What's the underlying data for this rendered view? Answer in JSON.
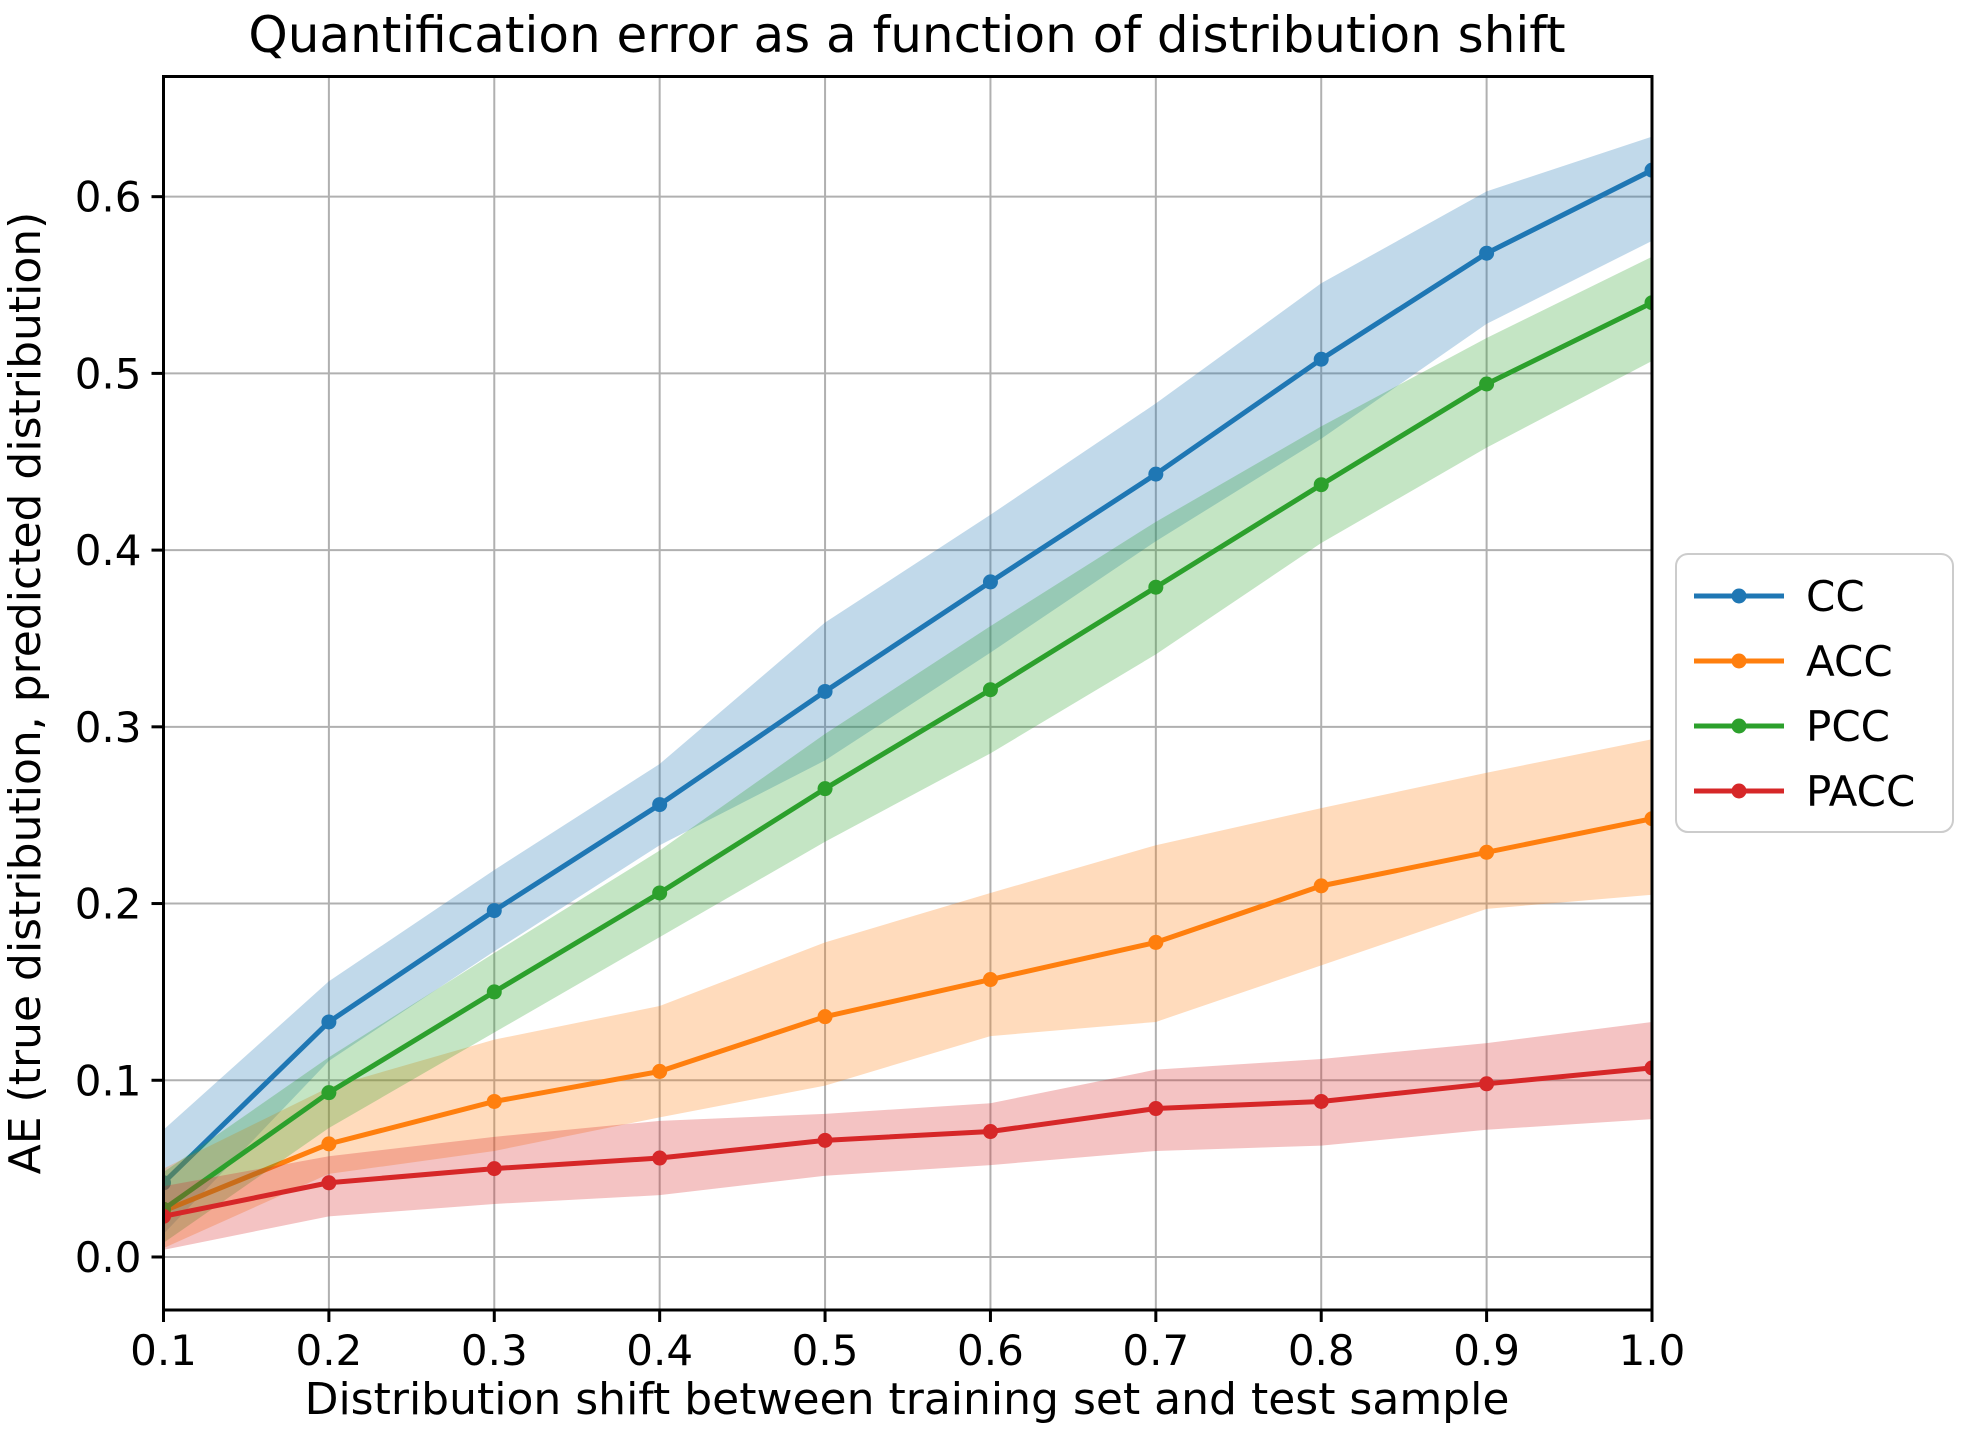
{
  "chart_data": {
    "type": "line",
    "title": "Quantification error as a function of distribution shift",
    "xlabel": "Distribution shift between training set and test sample",
    "ylabel": "AE (true distribution, predicted distribution)",
    "grid": true,
    "legend_position": "right of plot, vertically centered",
    "xlim": [
      0.1,
      1.0
    ],
    "ylim": [
      -0.03,
      0.668
    ],
    "x": [
      0.1,
      0.2,
      0.3,
      0.4,
      0.5,
      0.6,
      0.7,
      0.8,
      0.9,
      1.0
    ],
    "x_tick_labels": [
      "0.1",
      "0.2",
      "0.3",
      "0.4",
      "0.5",
      "0.6",
      "0.7",
      "0.8",
      "0.9",
      "1.0"
    ],
    "y_ticks": [
      0.0,
      0.1,
      0.2,
      0.3,
      0.4,
      0.5,
      0.6
    ],
    "y_tick_labels": [
      "0.0",
      "0.1",
      "0.2",
      "0.3",
      "0.4",
      "0.5",
      "0.6"
    ],
    "series": [
      {
        "name": "CC",
        "color": "#1f77b4",
        "values": [
          0.042,
          0.133,
          0.196,
          0.256,
          0.32,
          0.382,
          0.443,
          0.508,
          0.568,
          0.615
        ],
        "band_lo": [
          0.013,
          0.111,
          0.173,
          0.233,
          0.281,
          0.342,
          0.405,
          0.463,
          0.528,
          0.575
        ],
        "band_hi": [
          0.072,
          0.156,
          0.219,
          0.279,
          0.359,
          0.42,
          0.483,
          0.551,
          0.603,
          0.634
        ]
      },
      {
        "name": "ACC",
        "color": "#ff7f0e",
        "values": [
          0.026,
          0.064,
          0.088,
          0.105,
          0.136,
          0.157,
          0.178,
          0.21,
          0.229,
          0.248
        ],
        "band_lo": [
          0.005,
          0.047,
          0.06,
          0.079,
          0.097,
          0.125,
          0.133,
          0.165,
          0.197,
          0.205
        ],
        "band_hi": [
          0.05,
          0.096,
          0.123,
          0.142,
          0.178,
          0.206,
          0.233,
          0.254,
          0.274,
          0.293
        ]
      },
      {
        "name": "PCC",
        "color": "#2ca02c",
        "values": [
          0.027,
          0.093,
          0.15,
          0.206,
          0.265,
          0.321,
          0.379,
          0.437,
          0.494,
          0.54
        ],
        "band_lo": [
          0.008,
          0.073,
          0.127,
          0.181,
          0.235,
          0.285,
          0.341,
          0.404,
          0.458,
          0.507
        ],
        "band_hi": [
          0.048,
          0.113,
          0.172,
          0.23,
          0.296,
          0.357,
          0.416,
          0.47,
          0.52,
          0.566
        ]
      },
      {
        "name": "PACC",
        "color": "#d62728",
        "values": [
          0.023,
          0.042,
          0.05,
          0.056,
          0.066,
          0.071,
          0.084,
          0.088,
          0.098,
          0.107
        ],
        "band_lo": [
          0.004,
          0.023,
          0.03,
          0.035,
          0.046,
          0.052,
          0.06,
          0.063,
          0.072,
          0.078
        ],
        "band_hi": [
          0.04,
          0.057,
          0.068,
          0.077,
          0.081,
          0.087,
          0.106,
          0.112,
          0.121,
          0.133
        ]
      }
    ],
    "styles": {
      "grid_color": "#b0b0b0",
      "spine_color": "#000000",
      "band_alpha": 0.28,
      "background": "#ffffff",
      "legend_border": "#cccccc"
    }
  }
}
